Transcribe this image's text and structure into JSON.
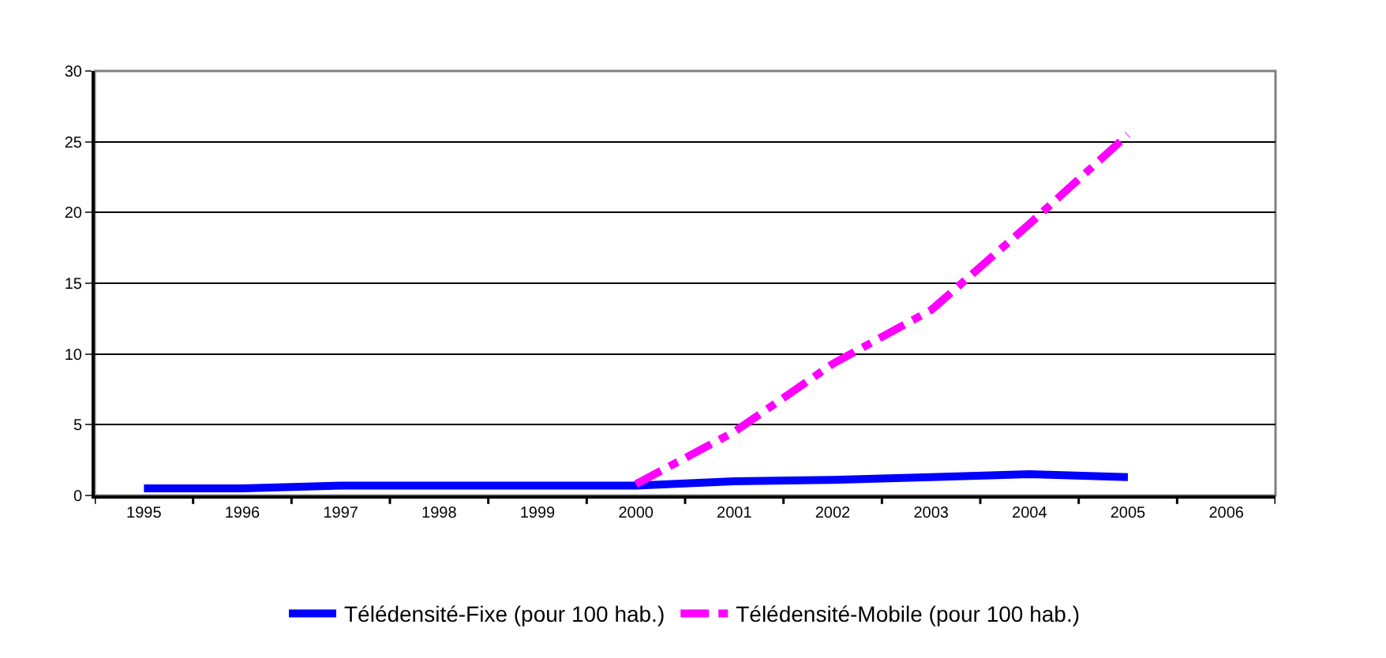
{
  "chart_data": {
    "type": "line",
    "categories": [
      "1995",
      "1996",
      "1997",
      "1998",
      "1999",
      "2000",
      "2001",
      "2002",
      "2003",
      "2004",
      "2005",
      "2006"
    ],
    "series": [
      {
        "name": "Télédensité-Fixe (pour 100 hab.)",
        "color": "#0000ff",
        "line_style": "solid",
        "values": [
          0.5,
          0.5,
          0.7,
          0.7,
          0.7,
          0.7,
          1.0,
          1.1,
          1.3,
          1.5,
          1.3,
          null
        ]
      },
      {
        "name": "Télédensité-Mobile (pour 100 hab.)",
        "color": "#ff00ff",
        "line_style": "dashed",
        "values": [
          null,
          null,
          null,
          null,
          null,
          0.8,
          4.5,
          9.3,
          13.1,
          19.2,
          25.5,
          null
        ]
      }
    ],
    "ylim": [
      0,
      30
    ],
    "yticks": [
      0,
      5,
      10,
      15,
      20,
      25,
      30
    ],
    "grid": "y",
    "legend": "bottom",
    "marker": "none"
  }
}
